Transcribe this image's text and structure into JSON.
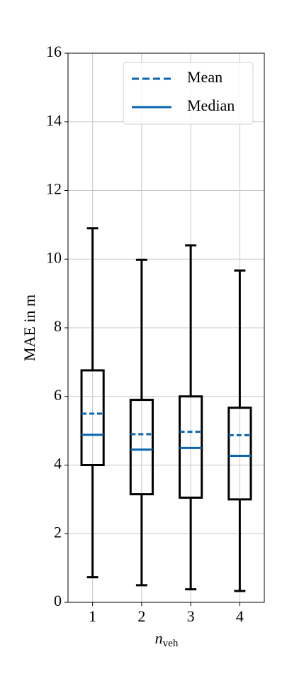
{
  "chart_data": {
    "type": "box",
    "y_label": "MAE in m",
    "x_label": {
      "base": "n",
      "subscript": "veh"
    },
    "categories": [
      "1",
      "2",
      "3",
      "4"
    ],
    "boxes": [
      {
        "whisker_low": 0.73,
        "q1": 4.0,
        "median": 4.88,
        "mean": 5.5,
        "q3": 6.76,
        "whisker_high": 10.9
      },
      {
        "whisker_low": 0.5,
        "q1": 3.15,
        "median": 4.45,
        "mean": 4.9,
        "q3": 5.9,
        "whisker_high": 9.98
      },
      {
        "whisker_low": 0.38,
        "q1": 3.05,
        "median": 4.5,
        "mean": 4.97,
        "q3": 6.0,
        "whisker_high": 10.4
      },
      {
        "whisker_low": 0.33,
        "q1": 3.0,
        "median": 4.27,
        "mean": 4.87,
        "q3": 5.67,
        "whisker_high": 9.67
      }
    ],
    "box_color": "#000000",
    "legend": [
      {
        "name": "Mean",
        "color": "#0b65b0",
        "dash": true
      },
      {
        "name": "Median",
        "color": "#0b65b0",
        "dash": false
      }
    ],
    "legend_position": "upper right",
    "ylim": [
      0,
      16
    ],
    "yticks": [
      0,
      2,
      4,
      6,
      8,
      10,
      12,
      14,
      16
    ],
    "grid": true
  }
}
